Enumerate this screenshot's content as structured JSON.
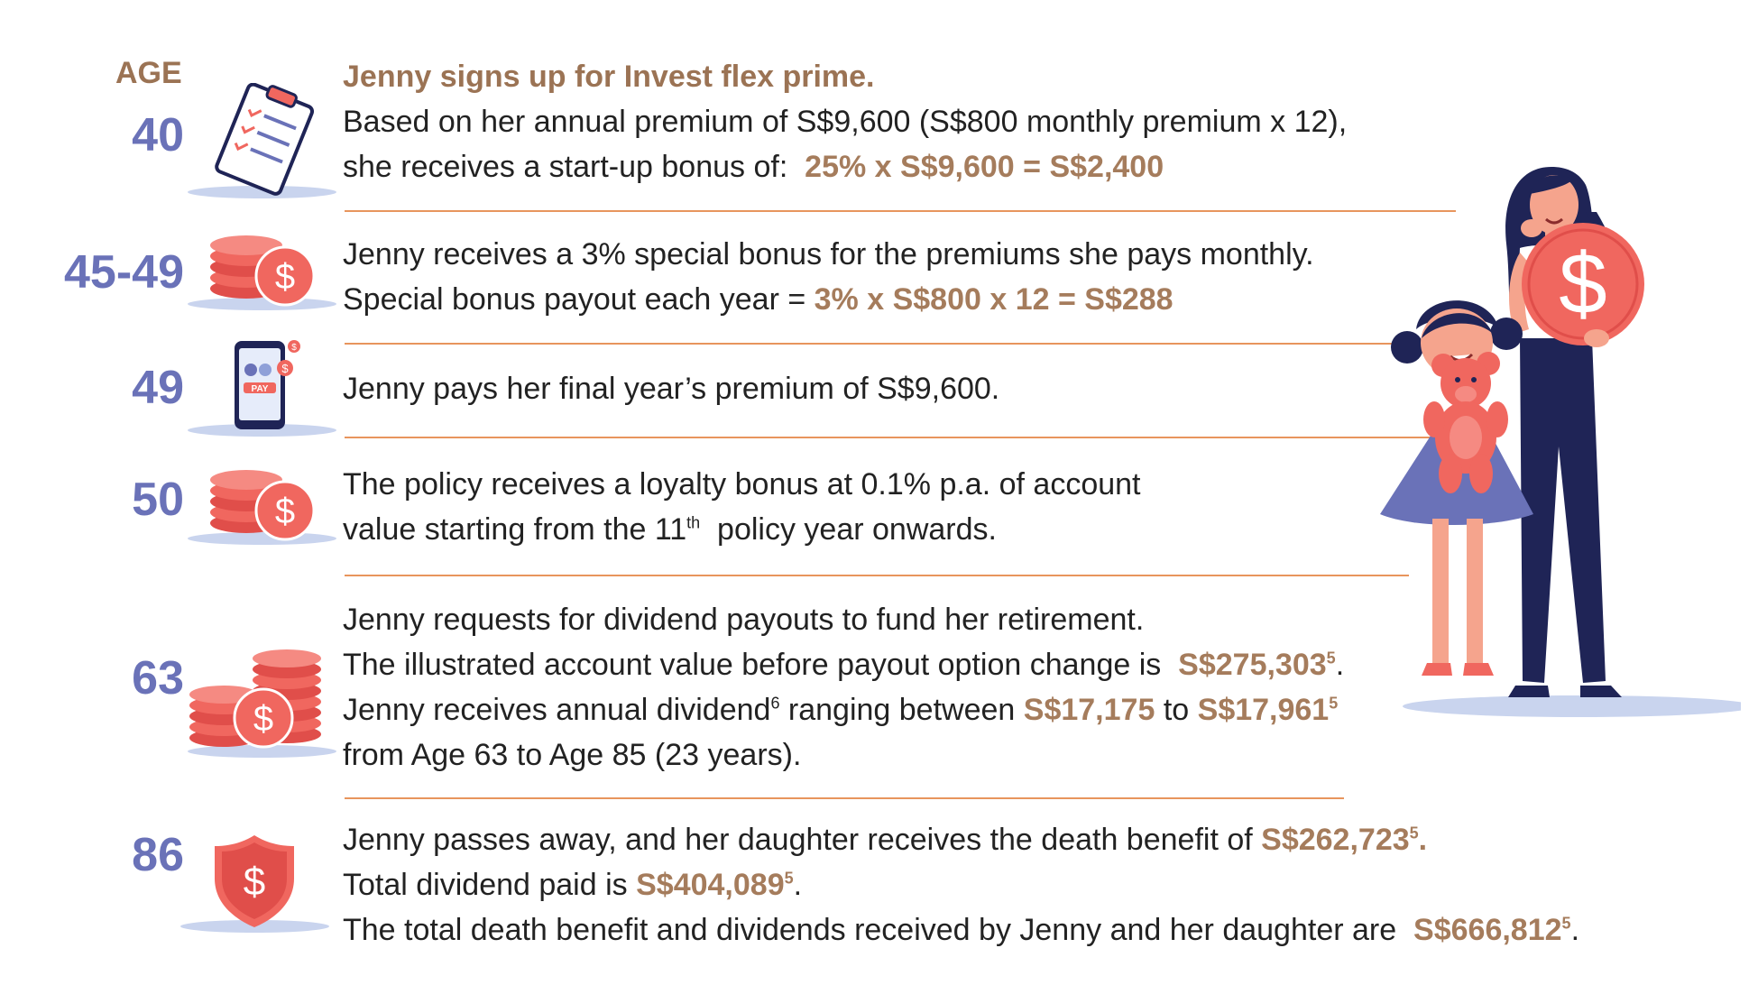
{
  "age_header": "AGE",
  "rows": [
    {
      "age": "40",
      "icon": "clipboard-checklist-icon",
      "title": "Jenny signs up for Invest flex prime.",
      "line1": "Based on her annual premium of S$9,600 (S$800 monthly premium x 12),",
      "line2_text": "she receives a start-up bonus of:",
      "line2_value": "25% x S$9,600 = S$2,400"
    },
    {
      "age": "45-49",
      "icon": "coin-stack-icon",
      "line1": "Jenny receives a 3% special bonus for the premiums she pays monthly.",
      "line2_text": "Special bonus payout each year =",
      "line2_value": "3% x S$800 x 12 = S$288"
    },
    {
      "age": "49",
      "icon": "phone-pay-icon",
      "pay_label": "PAY",
      "line1": "Jenny pays her final year’s premium of S$9,600."
    },
    {
      "age": "50",
      "icon": "coin-stack-icon",
      "line1": "The policy receives a loyalty bonus at 0.1% p.a. of account",
      "line2_a": "value starting from the 11",
      "line2_sup": "th",
      "line2_b": "policy year onwards."
    },
    {
      "age": "63",
      "icon": "coin-piles-icon",
      "line1": "Jenny requests for dividend payouts to fund her retirement.",
      "line2_text": "The illustrated account value before payout option change is",
      "line2_value": "S$275,303",
      "line2_sup": "5",
      "line3_a": "Jenny receives annual dividend",
      "line3_sup1": "6",
      "line3_b": "ranging between",
      "line3_v1": "S$17,175",
      "line3_to": "to",
      "line3_v2": "S$17,961",
      "line3_sup2": "5",
      "line4": "from Age 63 to Age 85 (23 years)."
    },
    {
      "age": "86",
      "icon": "shield-dollar-icon",
      "line1_text": "Jenny passes away, and her daughter receives the death benefit of",
      "line1_value": "S$262,723",
      "line1_sup": "5",
      "line2_text": "Total dividend paid is",
      "line2_value": "S$404,089",
      "line2_sup": "5",
      "line3_text": "The total death benefit and dividends received by Jenny and her daughter are",
      "line3_value": "S$666,812",
      "line3_sup": "5"
    }
  ],
  "illustration": "mother-daughter-coin-illustration",
  "colors": {
    "age": "#6a72b8",
    "highlight": "#a57c5c",
    "rule": "#e8955d",
    "coin": "#f0675f",
    "navy": "#1f2456"
  }
}
